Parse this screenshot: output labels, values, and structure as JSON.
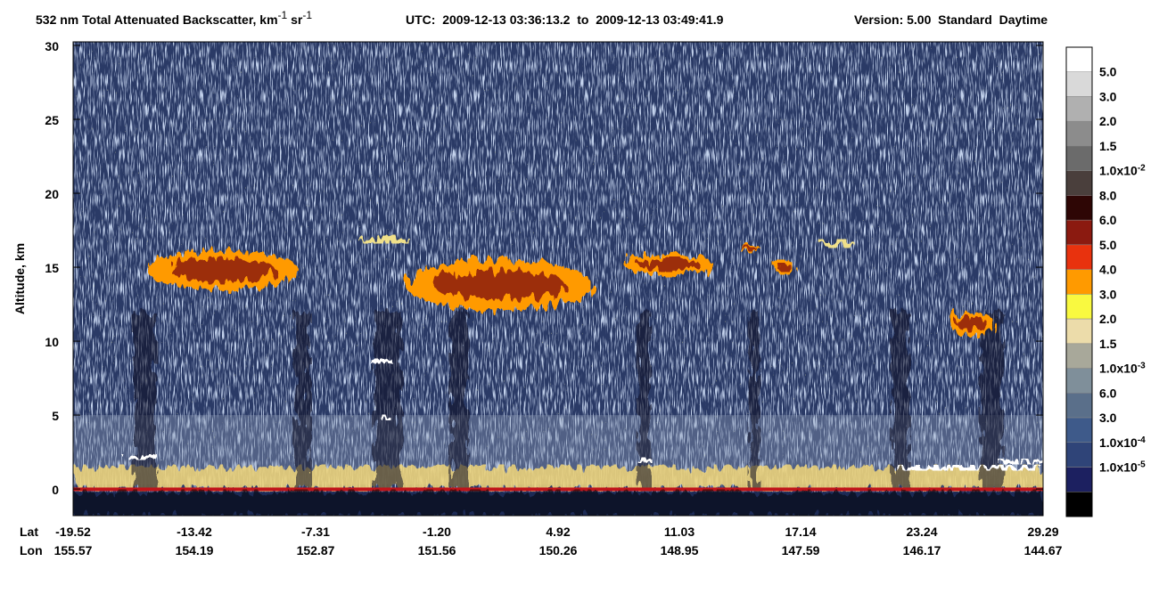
{
  "chart_data": {
    "type": "heatmap",
    "title_parts": [
      "532 nm Total Attenuated Backscatter, km",
      "-1",
      " sr",
      "-1"
    ],
    "utc": "UTC:  2009-12-13 03:36:13.2  to  2009-12-13 03:49:41.9",
    "version": "Version: 5.00  Standard  Daytime",
    "y_label": "Altitude, km",
    "ylim": [
      -1.8,
      30
    ],
    "yticks": [
      0,
      5,
      10,
      15,
      20,
      25,
      30
    ],
    "lat_title": "Lat",
    "lon_title": "Lon",
    "lat_labels": [
      "-19.52",
      "-13.42",
      "-7.31",
      "-1.20",
      "4.92",
      "11.03",
      "17.14",
      "23.24",
      "29.29"
    ],
    "lon_labels": [
      "155.57",
      "154.19",
      "152.87",
      "151.56",
      "150.26",
      "148.95",
      "147.59",
      "146.17",
      "144.67"
    ],
    "colorbar_colors": [
      "#ffffff",
      "#d9d9d9",
      "#b0b0b0",
      "#8c8c8c",
      "#6b6b6b",
      "#4a3f3c",
      "#2e0605",
      "#8b1a10",
      "#e8320e",
      "#ff9a00",
      "#f9f940",
      "#ecdcaa",
      "#a8a89a",
      "#7f8f9a",
      "#5a6f8a",
      "#3e5a8a",
      "#2f4478",
      "#1c2060",
      "#000000"
    ],
    "colorbar_labels": [
      "5.0",
      "3.0",
      "2.0",
      "1.5",
      {
        "base": "1.0x10",
        "exp": "-2"
      },
      "8.0",
      "6.0",
      "5.0",
      "4.0",
      "3.0",
      "2.0",
      "1.5",
      {
        "base": "1.0x10",
        "exp": "-3"
      },
      "6.0",
      "3.0",
      {
        "base": "1.0x10",
        "exp": "-4"
      },
      {
        "base": "1.0x10",
        "exp": "-5"
      }
    ]
  }
}
